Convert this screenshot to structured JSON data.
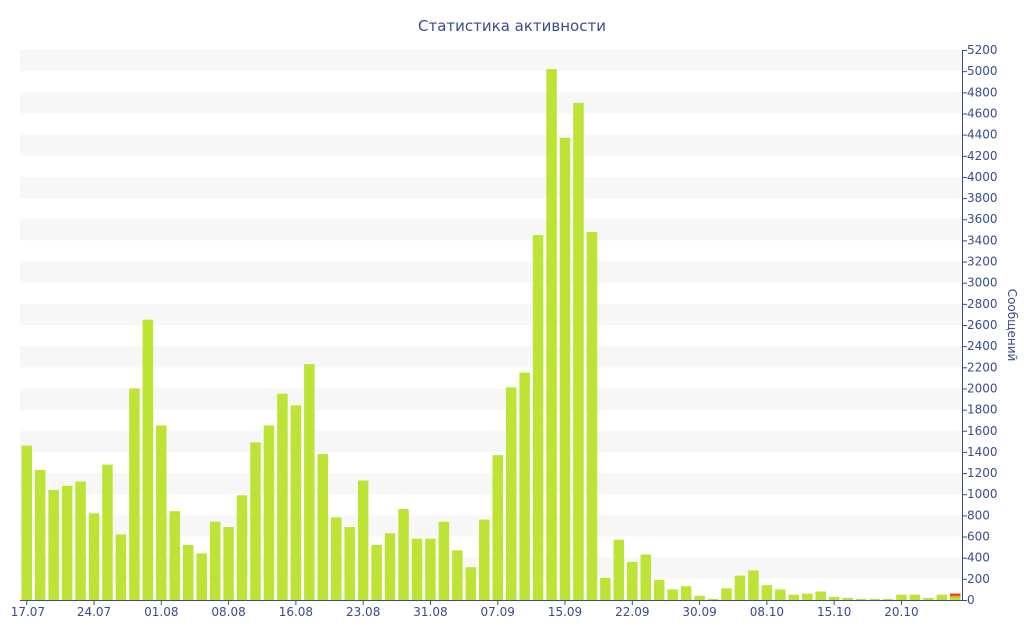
{
  "chart_data": {
    "type": "bar",
    "title": "Статистика активности",
    "xlabel": "",
    "ylabel": "Сообщений",
    "ylim": [
      0,
      5200
    ],
    "y_ticks": [
      0,
      200,
      400,
      600,
      800,
      1000,
      1200,
      1400,
      1600,
      1800,
      2000,
      2200,
      2400,
      2600,
      2800,
      3000,
      3200,
      3400,
      3600,
      3800,
      4000,
      4200,
      4400,
      4600,
      4800,
      5000,
      5200
    ],
    "x_tick_labels": [
      {
        "label": "17.07",
        "index": 0
      },
      {
        "label": "24.07",
        "index": 5
      },
      {
        "label": "01.08",
        "index": 10
      },
      {
        "label": "08.08",
        "index": 15
      },
      {
        "label": "16.08",
        "index": 20
      },
      {
        "label": "23.08",
        "index": 25
      },
      {
        "label": "31.08",
        "index": 30
      },
      {
        "label": "07.09",
        "index": 35
      },
      {
        "label": "15.09",
        "index": 40
      },
      {
        "label": "22.09",
        "index": 45
      },
      {
        "label": "30.09",
        "index": 50
      },
      {
        "label": "08.10",
        "index": 55
      },
      {
        "label": "15.10",
        "index": 60
      },
      {
        "label": "20.10",
        "index": 65
      }
    ],
    "grid": "alternating horizontal bands",
    "values": [
      1460,
      1230,
      1040,
      1080,
      1120,
      820,
      1280,
      620,
      2000,
      2650,
      1650,
      840,
      520,
      440,
      740,
      690,
      990,
      1490,
      1650,
      1950,
      1840,
      2230,
      1380,
      780,
      690,
      1130,
      520,
      630,
      860,
      580,
      580,
      740,
      470,
      310,
      760,
      1370,
      2010,
      2150,
      3450,
      5020,
      4370,
      4700,
      3480,
      210,
      570,
      360,
      430,
      190,
      100,
      130,
      40,
      10,
      110,
      230,
      280,
      140,
      100,
      50,
      60,
      80,
      30,
      20,
      10,
      10,
      10,
      50,
      50,
      20,
      50,
      60
    ],
    "colors": {
      "bar": "#bde335",
      "band": "#f7f7f7",
      "axis": "#3a4c8c",
      "last_bar_top_red": "#e8321e",
      "last_bar_top_orange": "#f2a21a"
    }
  }
}
